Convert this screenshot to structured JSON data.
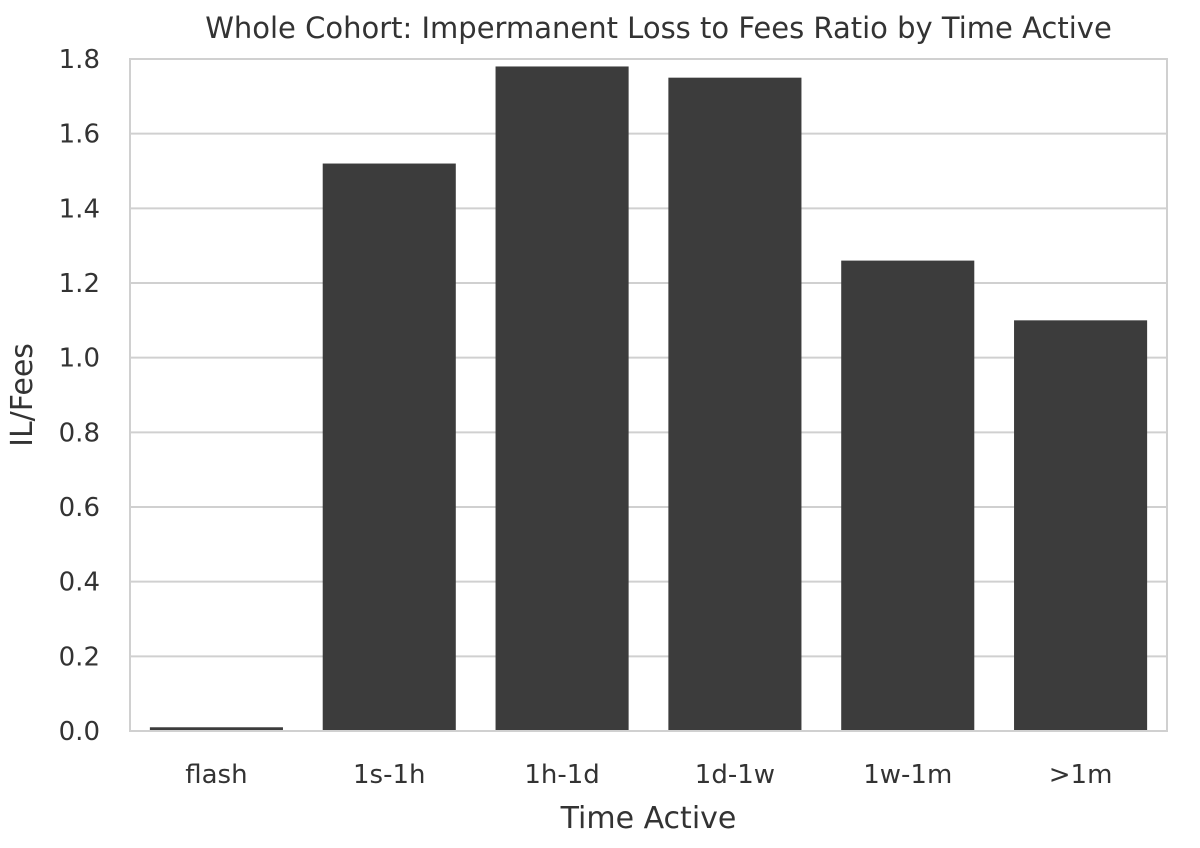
{
  "chart_data": {
    "type": "bar",
    "title": "Whole Cohort: Impermanent Loss to Fees Ratio by Time Active",
    "xlabel": "Time Active",
    "ylabel": "IL/Fees",
    "categories": [
      "flash",
      "1s-1h",
      "1h-1d",
      "1d-1w",
      "1w-1m",
      ">1m"
    ],
    "values": [
      0.01,
      1.52,
      1.78,
      1.75,
      1.26,
      1.1
    ],
    "ylim": [
      0,
      1.8
    ],
    "yticks": [
      "0.0",
      "0.2",
      "0.4",
      "0.6",
      "0.8",
      "1.0",
      "1.2",
      "1.4",
      "1.6",
      "1.8"
    ],
    "grid": "horizontal",
    "bar_color": "#3c3c3c",
    "grid_color": "#d0d0d0"
  }
}
